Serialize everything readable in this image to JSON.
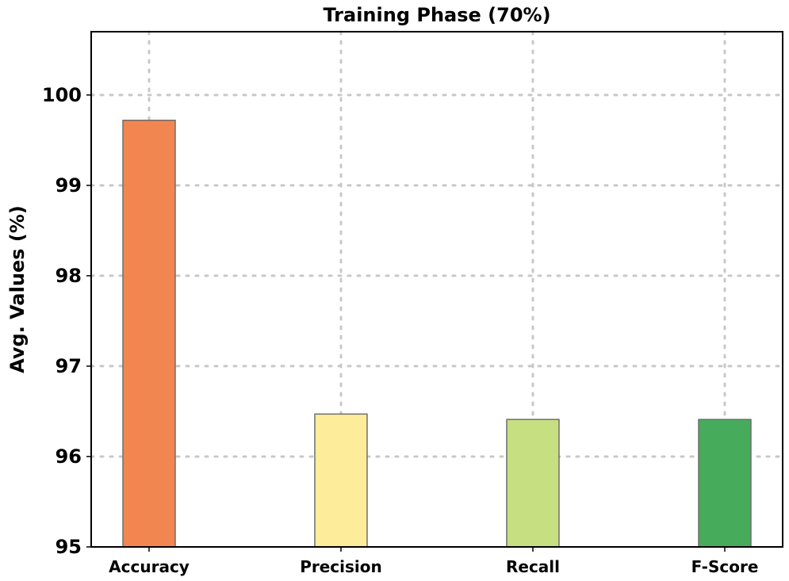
{
  "chart_data": {
    "type": "bar",
    "title": "Training Phase (70%)",
    "xlabel": "",
    "ylabel": "Avg. Values (%)",
    "categories": [
      "Accuracy",
      "Precision",
      "Recall",
      "F-Score"
    ],
    "values": [
      99.72,
      96.47,
      96.41,
      96.41
    ],
    "colors": [
      "#f28650",
      "#fdec9a",
      "#c6df80",
      "#46ab5a"
    ],
    "ylim": [
      95,
      100.7
    ],
    "yticks": [
      95,
      96,
      97,
      98,
      99,
      100
    ],
    "grid": true,
    "legend": "none"
  }
}
